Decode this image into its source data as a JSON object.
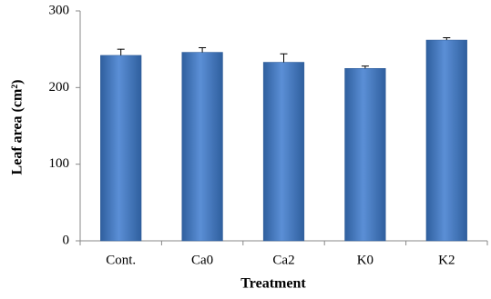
{
  "chart_data": {
    "type": "bar",
    "x_label": "Treatment",
    "y_label": "Leaf area (cm²)",
    "categories": [
      "Cont.",
      "Ca0",
      "Ca2",
      "K0",
      "K2"
    ],
    "values": [
      242,
      246,
      233,
      225,
      262
    ],
    "errors": [
      8,
      6,
      11,
      3,
      3
    ],
    "color": "#4a7ec8",
    "ylim": [
      0,
      300
    ],
    "yticks": [
      0,
      100,
      200,
      300
    ],
    "grid": false
  }
}
